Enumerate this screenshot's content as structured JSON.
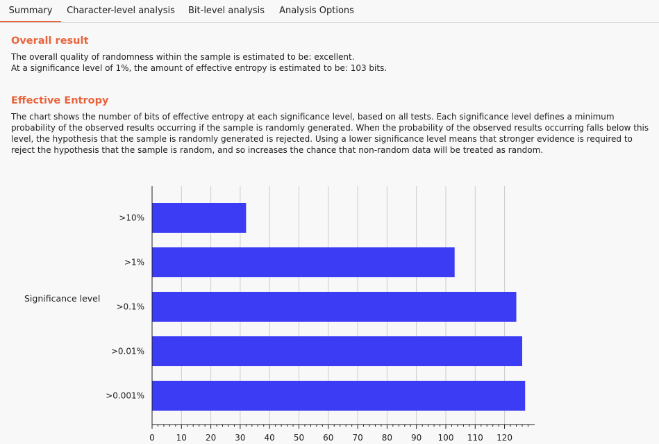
{
  "tabs": [
    {
      "label": "Summary",
      "active": true
    },
    {
      "label": "Character-level analysis",
      "active": false
    },
    {
      "label": "Bit-level analysis",
      "active": false
    },
    {
      "label": "Analysis Options",
      "active": false
    }
  ],
  "overall": {
    "title": "Overall result",
    "line1": "The overall quality of randomness within the sample is estimated to be: excellent.",
    "line2": "At a significance level of 1%, the amount of effective entropy is estimated to be: 103 bits."
  },
  "entropy": {
    "title": "Effective Entropy",
    "description": "The chart shows the number of bits of effective entropy at each significance level, based on all tests. Each significance level defines a minimum probability of the observed results occurring if the sample is randomly generated. When the probability of the observed results occurring falls below this level, the hypothesis that the sample is randomly generated is rejected. Using a lower significance level means that stronger evidence is required to reject the hypothesis that the sample is random, and so increases the chance that non-random data will be treated as random."
  },
  "colors": {
    "accent": "#e8643c",
    "bar": "#3c3cf5",
    "grid": "#cccccc"
  },
  "chart_data": {
    "type": "bar",
    "orientation": "horizontal",
    "ylabel": "Significance level",
    "xlabel": "",
    "categories": [
      ">10%",
      ">1%",
      ">0.1%",
      ">0.01%",
      ">0.001%"
    ],
    "values": [
      32,
      103,
      124,
      126,
      127
    ],
    "xlim": [
      0,
      130
    ],
    "xticks": [
      0,
      10,
      20,
      30,
      40,
      50,
      60,
      70,
      80,
      90,
      100,
      110,
      120
    ],
    "grid": true
  }
}
